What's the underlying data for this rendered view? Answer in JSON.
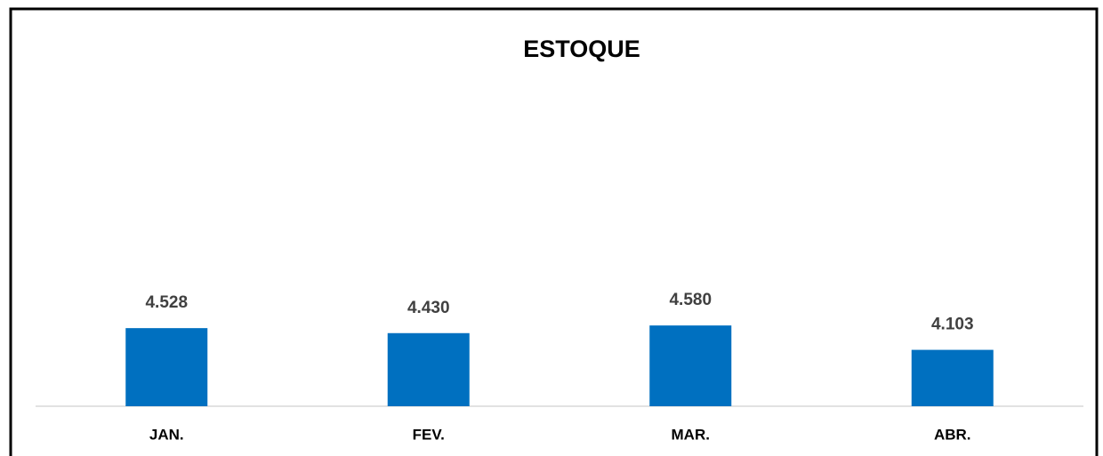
{
  "chart_data": {
    "type": "bar",
    "title": "ESTOQUE",
    "categories": [
      "JAN.",
      "FEV.",
      "MAR.",
      "ABR."
    ],
    "values": [
      4528,
      4430,
      4580,
      4103
    ],
    "value_labels": [
      "4.528",
      "4.430",
      "4.580",
      "4.103"
    ],
    "color": "#0070c0",
    "ylim": [
      3000,
      9000
    ]
  }
}
